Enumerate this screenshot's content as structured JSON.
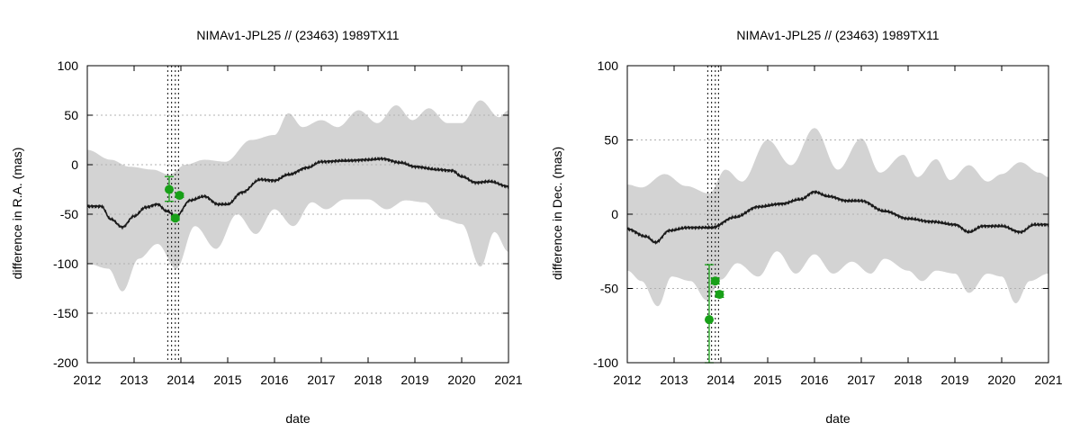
{
  "chart_data": [
    {
      "type": "line",
      "title": "NIMAv1-JPL25 // (23463) 1989TX11",
      "xlabel": "date",
      "ylabel": "difference in R.A. (mas)",
      "xlim": [
        2012,
        2021
      ],
      "ylim": [
        -200,
        100
      ],
      "xticks": [
        2012,
        2013,
        2014,
        2015,
        2016,
        2017,
        2018,
        2019,
        2020,
        2021
      ],
      "yticks": [
        -200,
        -150,
        -100,
        -50,
        0,
        50,
        100
      ],
      "xtick_labels": [
        "2012",
        "2013",
        "2014",
        "2015",
        "2016",
        "2017",
        "2018",
        "2019",
        "2020",
        "2021"
      ],
      "ytick_labels": [
        "-200",
        "-150",
        "-100",
        "-50",
        "0",
        "50",
        "100"
      ],
      "grid": true,
      "colors": {
        "band": "#d3d3d3",
        "line": "#1a1a1a",
        "obs": "#18a018",
        "vline": "#333333",
        "grid": "#b0b0b0"
      },
      "vlines": [
        2013.72,
        2013.8,
        2013.88,
        2013.95
      ],
      "series": [
        {
          "name": "difference (mean)",
          "x": [
            2012,
            2012.3,
            2012.5,
            2012.75,
            2013,
            2013.25,
            2013.5,
            2013.7,
            2013.9,
            2014.2,
            2014.5,
            2014.8,
            2015.0,
            2015.3,
            2015.7,
            2016.0,
            2016.3,
            2016.7,
            2017.0,
            2017.5,
            2018.0,
            2018.3,
            2018.7,
            2019.0,
            2019.5,
            2019.8,
            2020.0,
            2020.3,
            2020.6,
            2021.0
          ],
          "y": [
            -42,
            -42,
            -55,
            -63,
            -52,
            -43,
            -40,
            -47,
            -52,
            -36,
            -32,
            -40,
            -40,
            -28,
            -15,
            -16,
            -10,
            -3,
            3,
            4,
            5,
            6,
            2,
            -2,
            -5,
            -6,
            -12,
            -18,
            -17,
            -22
          ]
        },
        {
          "name": "uncertainty upper",
          "x": [
            2012,
            2012.5,
            2012.9,
            2013.4,
            2013.75,
            2014.1,
            2014.5,
            2014.95,
            2015.5,
            2016.0,
            2016.3,
            2016.6,
            2017.0,
            2017.35,
            2017.8,
            2018.2,
            2018.6,
            2018.95,
            2019.3,
            2019.7,
            2020.0,
            2020.4,
            2020.8,
            2021.0
          ],
          "y": [
            15,
            5,
            -2,
            -5,
            -10,
            0,
            5,
            3,
            25,
            30,
            52,
            38,
            45,
            38,
            55,
            42,
            60,
            45,
            57,
            42,
            42,
            65,
            48,
            55
          ]
        },
        {
          "name": "uncertainty lower",
          "x": [
            2012,
            2012.45,
            2012.75,
            2013.1,
            2013.5,
            2013.9,
            2014.3,
            2014.75,
            2015.2,
            2015.6,
            2016.0,
            2016.4,
            2016.8,
            2017.1,
            2017.5,
            2018.0,
            2018.4,
            2018.8,
            2019.2,
            2019.6,
            2020.0,
            2020.4,
            2020.7,
            2021.0
          ],
          "y": [
            -100,
            -105,
            -128,
            -95,
            -80,
            -105,
            -62,
            -85,
            -50,
            -70,
            -45,
            -62,
            -38,
            -45,
            -35,
            -35,
            -45,
            -36,
            -38,
            -55,
            -60,
            -103,
            -68,
            -88
          ]
        }
      ],
      "observations": [
        {
          "x": 2013.75,
          "y": -25,
          "err_lo": -37,
          "err_hi": -12,
          "xerr": 0
        },
        {
          "x": 2013.88,
          "y": -54,
          "err_lo": -56,
          "err_hi": -52,
          "xerr": 0.05
        },
        {
          "x": 2013.97,
          "y": -31,
          "err_lo": -33,
          "err_hi": -29,
          "xerr": 0.05
        }
      ]
    },
    {
      "type": "line",
      "title": "NIMAv1-JPL25 // (23463) 1989TX11",
      "xlabel": "date",
      "ylabel": "difference in Dec. (mas)",
      "xlim": [
        2012,
        2021
      ],
      "ylim": [
        -100,
        100
      ],
      "xticks": [
        2012,
        2013,
        2014,
        2015,
        2016,
        2017,
        2018,
        2019,
        2020,
        2021
      ],
      "yticks": [
        -100,
        -50,
        0,
        50,
        100
      ],
      "xtick_labels": [
        "2012",
        "2013",
        "2014",
        "2015",
        "2016",
        "2017",
        "2018",
        "2019",
        "2020",
        "2021"
      ],
      "ytick_labels": [
        "-100",
        "-50",
        "0",
        "50",
        "100"
      ],
      "grid": true,
      "colors": {
        "band": "#d3d3d3",
        "line": "#1a1a1a",
        "obs": "#18a018",
        "vline": "#333333",
        "grid": "#b0b0b0"
      },
      "vlines": [
        2013.72,
        2013.8,
        2013.88,
        2013.95
      ],
      "series": [
        {
          "name": "difference (mean)",
          "x": [
            2012,
            2012.4,
            2012.6,
            2012.9,
            2013.3,
            2013.8,
            2014.3,
            2014.8,
            2015.3,
            2015.7,
            2016.0,
            2016.3,
            2016.7,
            2017.0,
            2017.5,
            2018.0,
            2018.5,
            2019.0,
            2019.3,
            2019.6,
            2020.0,
            2020.4,
            2020.7,
            2021.0
          ],
          "y": [
            -10,
            -15,
            -19,
            -11,
            -9,
            -9,
            -2,
            5,
            7,
            10,
            15,
            12,
            9,
            9,
            2,
            -3,
            -5,
            -7,
            -12,
            -8,
            -8,
            -12,
            -7,
            -7
          ]
        },
        {
          "name": "uncertainty upper",
          "x": [
            2012,
            2012.3,
            2012.8,
            2013.25,
            2013.75,
            2014.1,
            2014.45,
            2015.0,
            2015.5,
            2016.0,
            2016.5,
            2017.0,
            2017.4,
            2017.9,
            2018.2,
            2018.6,
            2018.9,
            2019.3,
            2019.7,
            2020.0,
            2020.4,
            2020.8,
            2021.0
          ],
          "y": [
            20,
            18,
            27,
            19,
            14,
            30,
            22,
            50,
            33,
            58,
            30,
            51,
            28,
            40,
            25,
            37,
            23,
            33,
            22,
            27,
            35,
            28,
            25
          ]
        },
        {
          "name": "uncertainty lower",
          "x": [
            2012,
            2012.3,
            2012.65,
            2012.95,
            2013.35,
            2013.7,
            2014.0,
            2014.35,
            2014.8,
            2015.2,
            2015.6,
            2016.0,
            2016.4,
            2016.8,
            2017.2,
            2017.5,
            2018.0,
            2018.3,
            2018.6,
            2019.0,
            2019.3,
            2019.7,
            2020.0,
            2020.3,
            2020.6,
            2021.0
          ],
          "y": [
            -38,
            -45,
            -62,
            -42,
            -45,
            -58,
            -44,
            -33,
            -42,
            -25,
            -40,
            -27,
            -40,
            -32,
            -40,
            -30,
            -38,
            -45,
            -38,
            -40,
            -53,
            -40,
            -42,
            -60,
            -45,
            -40
          ]
        }
      ],
      "observations": [
        {
          "x": 2013.75,
          "y": -71,
          "err_lo": -100,
          "err_hi": -34,
          "xerr": 0.05
        },
        {
          "x": 2013.88,
          "y": -45,
          "err_lo": -47,
          "err_hi": -43,
          "xerr": 0.05
        },
        {
          "x": 2013.97,
          "y": -54,
          "err_lo": -56,
          "err_hi": -52,
          "xerr": 0.05
        }
      ]
    }
  ]
}
